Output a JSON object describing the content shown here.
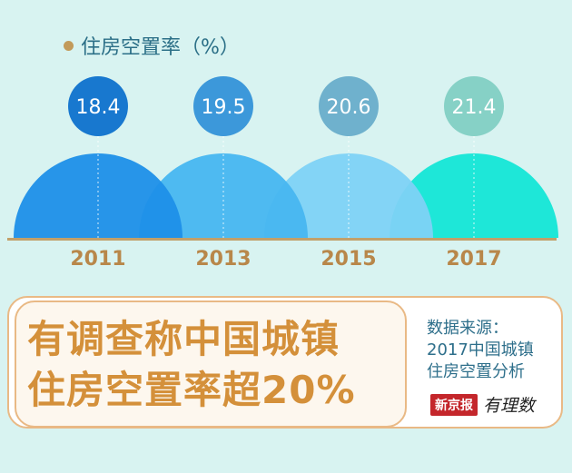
{
  "legend": {
    "label": "住房空置率（%）"
  },
  "chart_data": {
    "type": "bar",
    "categories": [
      "2011",
      "2013",
      "2015",
      "2017"
    ],
    "values": [
      18.4,
      19.5,
      20.6,
      21.4
    ],
    "value_labels": [
      "18.4",
      "19.5",
      "20.6",
      "21.4"
    ],
    "ylabel": "住房空置率（%）",
    "colors": {
      "arcs": [
        "#1e8fe8",
        "#47b6f0",
        "#7ed2f5",
        "#14e6d6"
      ],
      "bubbles": [
        "#1878cf",
        "#3c98da",
        "#6fb1cd",
        "#86d1c6"
      ],
      "baseline": "#c2a06a"
    }
  },
  "headline": {
    "line1": "有调查称中国城镇",
    "line2": "住房空置率超20%"
  },
  "source": {
    "line1": "数据来源：",
    "line2": "2017中国城镇",
    "line3": "住房空置分析"
  },
  "logo": {
    "brand": "新京报",
    "column": "有理数"
  }
}
